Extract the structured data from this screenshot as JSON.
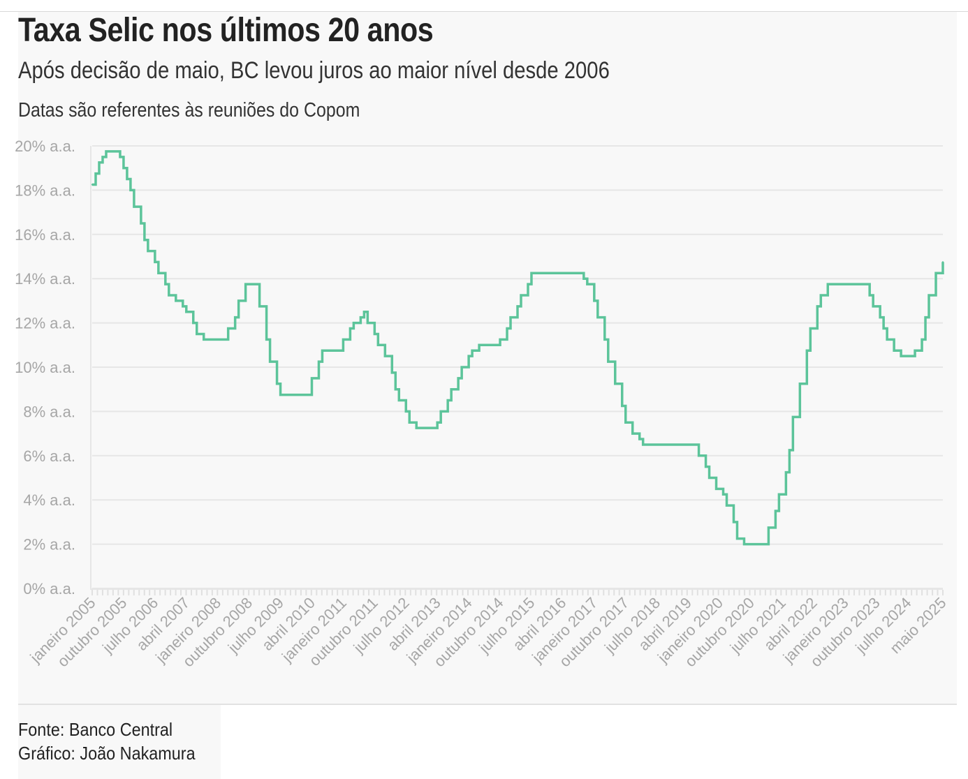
{
  "header": {
    "title": "Taxa Selic nos últimos 20 anos",
    "subtitle": "Após decisão de maio, BC levou juros ao maior nível desde 2006",
    "note": "Datas são referentes às reuniões do Copom"
  },
  "footer": {
    "source": "Fonte: Banco Central",
    "credit": "Gráfico: João Nakamura"
  },
  "colors": {
    "line": "#5cc49a",
    "grid": "#e6e6e6",
    "panel": "#f8f8f8",
    "tick_text": "#a6a6a6"
  },
  "chart_data": {
    "type": "line",
    "step": true,
    "ylim": [
      0,
      20
    ],
    "grid": true,
    "y_ticks": [
      {
        "value": 0,
        "label": "0% a.a."
      },
      {
        "value": 2,
        "label": "2% a.a."
      },
      {
        "value": 4,
        "label": "4% a.a."
      },
      {
        "value": 6,
        "label": "6% a.a."
      },
      {
        "value": 8,
        "label": "8% a.a."
      },
      {
        "value": 10,
        "label": "10% a.a."
      },
      {
        "value": 12,
        "label": "12% a.a."
      },
      {
        "value": 14,
        "label": "14% a.a."
      },
      {
        "value": 16,
        "label": "16% a.a."
      },
      {
        "value": 18,
        "label": "18% a.a."
      },
      {
        "value": 20,
        "label": "20% a.a."
      }
    ],
    "x_tick_labels": [
      {
        "date": "2005-01",
        "label": "janeiro 2005"
      },
      {
        "date": "2005-10",
        "label": "outubro 2005"
      },
      {
        "date": "2006-07",
        "label": "julho 2006"
      },
      {
        "date": "2007-04",
        "label": "abril 2007"
      },
      {
        "date": "2008-01",
        "label": "janeiro 2008"
      },
      {
        "date": "2008-10",
        "label": "outubro 2008"
      },
      {
        "date": "2009-07",
        "label": "julho 2009"
      },
      {
        "date": "2010-04",
        "label": "abril 2010"
      },
      {
        "date": "2011-01",
        "label": "janeiro 2011"
      },
      {
        "date": "2011-10",
        "label": "outubro 2011"
      },
      {
        "date": "2012-07",
        "label": "julho 2012"
      },
      {
        "date": "2013-04",
        "label": "abril 2013"
      },
      {
        "date": "2014-01",
        "label": "janeiro 2014"
      },
      {
        "date": "2014-10",
        "label": "outubro 2014"
      },
      {
        "date": "2015-07",
        "label": "julho 2015"
      },
      {
        "date": "2016-04",
        "label": "abril 2016"
      },
      {
        "date": "2017-01",
        "label": "janeiro 2017"
      },
      {
        "date": "2017-10",
        "label": "outubro 2017"
      },
      {
        "date": "2018-07",
        "label": "julho 2018"
      },
      {
        "date": "2019-04",
        "label": "abril 2019"
      },
      {
        "date": "2020-01",
        "label": "janeiro 2020"
      },
      {
        "date": "2020-10",
        "label": "outubro 2020"
      },
      {
        "date": "2021-07",
        "label": "julho 2021"
      },
      {
        "date": "2022-04",
        "label": "abril 2022"
      },
      {
        "date": "2023-01",
        "label": "janeiro 2023"
      },
      {
        "date": "2023-10",
        "label": "outubro 2023"
      },
      {
        "date": "2024-07",
        "label": "julho 2024"
      },
      {
        "date": "2025-05",
        "label": "maio 2025"
      }
    ],
    "series": [
      {
        "name": "",
        "points": [
          [
            "2005-01",
            18.25
          ],
          [
            "2005-02",
            18.75
          ],
          [
            "2005-03",
            19.25
          ],
          [
            "2005-04",
            19.5
          ],
          [
            "2005-05",
            19.75
          ],
          [
            "2005-09",
            19.5
          ],
          [
            "2005-10",
            19.0
          ],
          [
            "2005-11",
            18.5
          ],
          [
            "2005-12",
            18.0
          ],
          [
            "2006-01",
            17.25
          ],
          [
            "2006-03",
            16.5
          ],
          [
            "2006-04",
            15.75
          ],
          [
            "2006-05",
            15.25
          ],
          [
            "2006-07",
            14.75
          ],
          [
            "2006-08",
            14.25
          ],
          [
            "2006-10",
            13.75
          ],
          [
            "2006-11",
            13.25
          ],
          [
            "2007-01",
            13.0
          ],
          [
            "2007-03",
            12.75
          ],
          [
            "2007-04",
            12.5
          ],
          [
            "2007-06",
            12.0
          ],
          [
            "2007-07",
            11.5
          ],
          [
            "2007-09",
            11.25
          ],
          [
            "2008-04",
            11.75
          ],
          [
            "2008-06",
            12.25
          ],
          [
            "2008-07",
            13.0
          ],
          [
            "2008-09",
            13.75
          ],
          [
            "2009-01",
            12.75
          ],
          [
            "2009-03",
            11.25
          ],
          [
            "2009-04",
            10.25
          ],
          [
            "2009-06",
            9.25
          ],
          [
            "2009-07",
            8.75
          ],
          [
            "2010-04",
            9.5
          ],
          [
            "2010-06",
            10.25
          ],
          [
            "2010-07",
            10.75
          ],
          [
            "2011-01",
            11.25
          ],
          [
            "2011-03",
            11.75
          ],
          [
            "2011-04",
            12.0
          ],
          [
            "2011-06",
            12.25
          ],
          [
            "2011-07",
            12.5
          ],
          [
            "2011-08",
            12.0
          ],
          [
            "2011-10",
            11.5
          ],
          [
            "2011-11",
            11.0
          ],
          [
            "2012-01",
            10.5
          ],
          [
            "2012-03",
            9.75
          ],
          [
            "2012-04",
            9.0
          ],
          [
            "2012-05",
            8.5
          ],
          [
            "2012-07",
            8.0
          ],
          [
            "2012-08",
            7.5
          ],
          [
            "2012-10",
            7.25
          ],
          [
            "2013-04",
            7.5
          ],
          [
            "2013-05",
            8.0
          ],
          [
            "2013-07",
            8.5
          ],
          [
            "2013-08",
            9.0
          ],
          [
            "2013-10",
            9.5
          ],
          [
            "2013-11",
            10.0
          ],
          [
            "2014-01",
            10.5
          ],
          [
            "2014-02",
            10.75
          ],
          [
            "2014-04",
            11.0
          ],
          [
            "2014-10",
            11.25
          ],
          [
            "2014-12",
            11.75
          ],
          [
            "2015-01",
            12.25
          ],
          [
            "2015-03",
            12.75
          ],
          [
            "2015-04",
            13.25
          ],
          [
            "2015-06",
            13.75
          ],
          [
            "2015-07",
            14.25
          ],
          [
            "2016-10",
            14.0
          ],
          [
            "2016-11",
            13.75
          ],
          [
            "2017-01",
            13.0
          ],
          [
            "2017-02",
            12.25
          ],
          [
            "2017-04",
            11.25
          ],
          [
            "2017-05",
            10.25
          ],
          [
            "2017-07",
            9.25
          ],
          [
            "2017-09",
            8.25
          ],
          [
            "2017-10",
            7.5
          ],
          [
            "2017-12",
            7.0
          ],
          [
            "2018-02",
            6.75
          ],
          [
            "2018-03",
            6.5
          ],
          [
            "2019-07",
            6.0
          ],
          [
            "2019-09",
            5.5
          ],
          [
            "2019-10",
            5.0
          ],
          [
            "2019-12",
            4.5
          ],
          [
            "2020-02",
            4.25
          ],
          [
            "2020-03",
            3.75
          ],
          [
            "2020-05",
            3.0
          ],
          [
            "2020-06",
            2.25
          ],
          [
            "2020-08",
            2.0
          ],
          [
            "2021-03",
            2.75
          ],
          [
            "2021-05",
            3.5
          ],
          [
            "2021-06",
            4.25
          ],
          [
            "2021-08",
            5.25
          ],
          [
            "2021-09",
            6.25
          ],
          [
            "2021-10",
            7.75
          ],
          [
            "2021-12",
            9.25
          ],
          [
            "2022-02",
            10.75
          ],
          [
            "2022-03",
            11.75
          ],
          [
            "2022-05",
            12.75
          ],
          [
            "2022-06",
            13.25
          ],
          [
            "2022-08",
            13.75
          ],
          [
            "2023-08",
            13.25
          ],
          [
            "2023-09",
            12.75
          ],
          [
            "2023-11",
            12.25
          ],
          [
            "2023-12",
            11.75
          ],
          [
            "2024-01",
            11.25
          ],
          [
            "2024-03",
            10.75
          ],
          [
            "2024-05",
            10.5
          ],
          [
            "2024-09",
            10.75
          ],
          [
            "2024-11",
            11.25
          ],
          [
            "2024-12",
            12.25
          ],
          [
            "2025-01",
            13.25
          ],
          [
            "2025-03",
            14.25
          ],
          [
            "2025-05",
            14.75
          ]
        ]
      }
    ]
  }
}
